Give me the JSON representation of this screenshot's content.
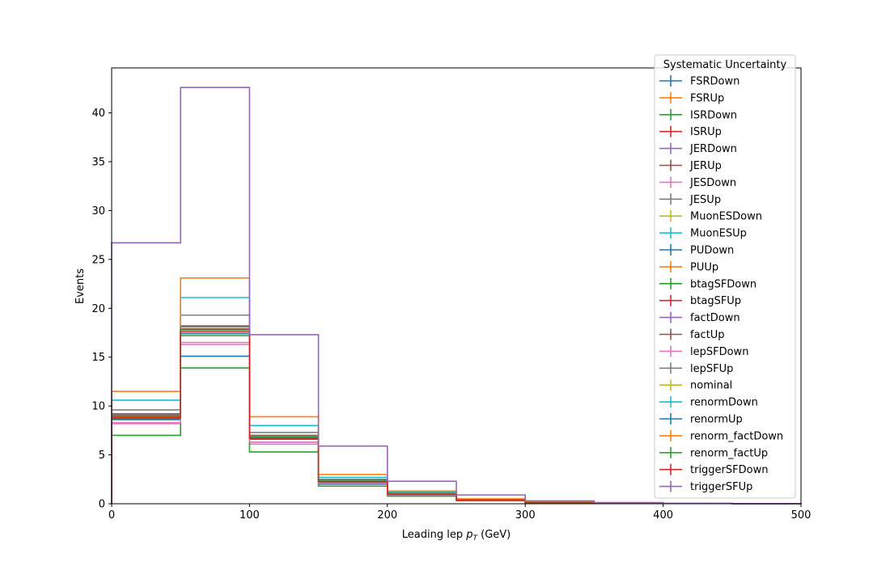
{
  "chart_data": {
    "type": "step-histogram",
    "xlabel_main": "Leading lep ",
    "xlabel_math_p": "p",
    "xlabel_math_sub": "T",
    "xlabel_unit": " (GeV)",
    "ylabel": "Events",
    "xlim": [
      0,
      500
    ],
    "ylim": [
      0,
      44.6
    ],
    "x_ticks": [
      0,
      100,
      200,
      300,
      400,
      500
    ],
    "y_ticks": [
      0,
      5,
      10,
      15,
      20,
      25,
      30,
      35,
      40
    ],
    "bin_edges": [
      0,
      50,
      100,
      150,
      200,
      250,
      300,
      350,
      400,
      450,
      500
    ],
    "grid": false,
    "legend": {
      "title": "Systematic Uncertainty",
      "placement": "top-right"
    },
    "series": [
      {
        "name": "FSRDown",
        "color": "#1f77b4",
        "values": [
          8.8,
          15.1,
          6.3,
          2.0,
          0.9,
          0.35,
          0.12,
          0.05,
          0.02,
          0.01
        ]
      },
      {
        "name": "FSRUp",
        "color": "#ff7f0e",
        "values": [
          9.0,
          17.9,
          6.9,
          2.3,
          1.0,
          0.4,
          0.13,
          0.05,
          0.02,
          0.01
        ]
      },
      {
        "name": "ISRDown",
        "color": "#2ca02c",
        "values": [
          8.6,
          17.2,
          6.6,
          2.2,
          0.95,
          0.38,
          0.12,
          0.05,
          0.02,
          0.01
        ]
      },
      {
        "name": "ISRUp",
        "color": "#d62728",
        "values": [
          9.0,
          18.1,
          6.9,
          2.3,
          1.0,
          0.4,
          0.13,
          0.05,
          0.02,
          0.01
        ]
      },
      {
        "name": "JERDown",
        "color": "#9467bd",
        "values": [
          8.9,
          17.8,
          6.8,
          2.3,
          1.0,
          0.39,
          0.13,
          0.05,
          0.02,
          0.01
        ]
      },
      {
        "name": "JERUp",
        "color": "#8c564b",
        "values": [
          9.2,
          18.2,
          7.0,
          2.4,
          1.02,
          0.4,
          0.13,
          0.05,
          0.02,
          0.01
        ]
      },
      {
        "name": "JESDown",
        "color": "#e377c2",
        "values": [
          8.2,
          16.3,
          6.1,
          2.1,
          0.9,
          0.35,
          0.12,
          0.04,
          0.02,
          0.01
        ]
      },
      {
        "name": "JESUp",
        "color": "#7f7f7f",
        "values": [
          9.6,
          19.3,
          7.3,
          2.5,
          1.08,
          0.42,
          0.14,
          0.05,
          0.02,
          0.01
        ]
      },
      {
        "name": "MuonESDown",
        "color": "#bcbd22",
        "values": [
          8.8,
          17.6,
          6.7,
          2.25,
          0.98,
          0.38,
          0.13,
          0.05,
          0.02,
          0.01
        ]
      },
      {
        "name": "MuonESUp",
        "color": "#17becf",
        "values": [
          10.6,
          21.1,
          8.0,
          2.7,
          1.18,
          0.46,
          0.15,
          0.06,
          0.02,
          0.01
        ]
      },
      {
        "name": "PUDown",
        "color": "#1f77b4",
        "values": [
          8.7,
          17.4,
          6.6,
          2.2,
          0.97,
          0.38,
          0.12,
          0.05,
          0.02,
          0.01
        ]
      },
      {
        "name": "PUUp",
        "color": "#ff7f0e",
        "values": [
          11.5,
          23.1,
          8.9,
          3.0,
          1.3,
          0.5,
          0.17,
          0.06,
          0.02,
          0.01
        ]
      },
      {
        "name": "btagSFDown",
        "color": "#2ca02c",
        "values": [
          7.0,
          13.9,
          5.3,
          1.8,
          0.78,
          0.3,
          0.1,
          0.04,
          0.02,
          0.01
        ]
      },
      {
        "name": "btagSFUp",
        "color": "#d62728",
        "values": [
          8.9,
          17.8,
          6.8,
          2.3,
          1.0,
          0.39,
          0.13,
          0.05,
          0.02,
          0.01
        ]
      },
      {
        "name": "factDown",
        "color": "#9467bd",
        "values": [
          8.9,
          17.8,
          6.8,
          2.3,
          1.0,
          0.39,
          0.13,
          0.05,
          0.02,
          0.01
        ]
      },
      {
        "name": "factUp",
        "color": "#8c564b",
        "values": [
          8.9,
          17.9,
          6.8,
          2.3,
          1.0,
          0.39,
          0.13,
          0.05,
          0.02,
          0.01
        ]
      },
      {
        "name": "lepSFDown",
        "color": "#e377c2",
        "values": [
          8.3,
          16.5,
          6.3,
          2.1,
          0.93,
          0.36,
          0.12,
          0.05,
          0.02,
          0.01
        ]
      },
      {
        "name": "lepSFUp",
        "color": "#7f7f7f",
        "values": [
          9.1,
          18.1,
          6.9,
          2.3,
          1.02,
          0.4,
          0.13,
          0.05,
          0.02,
          0.01
        ]
      },
      {
        "name": "nominal",
        "color": "#bcbd22",
        "values": [
          8.9,
          17.8,
          6.8,
          2.3,
          1.0,
          0.39,
          0.13,
          0.05,
          0.02,
          0.01
        ]
      },
      {
        "name": "renormDown",
        "color": "#17becf",
        "values": [
          8.9,
          17.8,
          6.8,
          2.3,
          1.0,
          0.39,
          0.13,
          0.05,
          0.02,
          0.01
        ]
      },
      {
        "name": "renormUp",
        "color": "#1f77b4",
        "values": [
          8.9,
          17.8,
          6.8,
          2.3,
          1.0,
          0.39,
          0.13,
          0.05,
          0.02,
          0.01
        ]
      },
      {
        "name": "renorm_factDown",
        "color": "#ff7f0e",
        "values": [
          8.9,
          17.8,
          6.8,
          2.3,
          1.0,
          0.39,
          0.13,
          0.05,
          0.02,
          0.01
        ]
      },
      {
        "name": "renorm_factUp",
        "color": "#2ca02c",
        "values": [
          8.9,
          17.8,
          6.8,
          2.3,
          1.0,
          0.39,
          0.13,
          0.05,
          0.02,
          0.01
        ]
      },
      {
        "name": "triggerSFDown",
        "color": "#d62728",
        "values": [
          8.8,
          17.6,
          6.7,
          2.25,
          0.98,
          0.38,
          0.13,
          0.05,
          0.02,
          0.01
        ]
      },
      {
        "name": "triggerSFUp",
        "color": "#9467bd",
        "values": [
          26.7,
          42.6,
          17.3,
          5.9,
          2.3,
          0.9,
          0.3,
          0.12,
          0.05,
          0.02
        ]
      }
    ]
  }
}
